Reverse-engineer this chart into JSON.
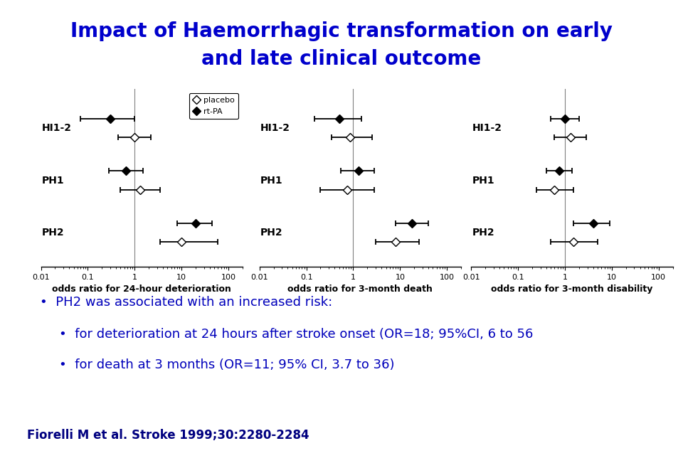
{
  "title_line1": "Impact of Haemorrhagic transformation on early",
  "title_line2": "and late clinical outcome",
  "title_color": "#0000CC",
  "title_fontsize": 20,
  "background_color": "#FFFFFF",
  "panels": [
    {
      "xlabel": "odds ratio for 24-hour deterioration",
      "rows": [
        "HI1-2",
        "PH1",
        "PH2"
      ],
      "rtpa": {
        "or": [
          0.3,
          0.65,
          20
        ],
        "ci_lo": [
          0.07,
          0.28,
          8
        ],
        "ci_hi": [
          1.0,
          1.5,
          45
        ]
      },
      "placebo": {
        "or": [
          1.0,
          1.3,
          10
        ],
        "ci_lo": [
          0.45,
          0.5,
          3.5
        ],
        "ci_hi": [
          2.2,
          3.5,
          60
        ]
      }
    },
    {
      "xlabel": "odds ratio for 3-month death",
      "rows": [
        "HI1-2",
        "PH1",
        "PH2"
      ],
      "rtpa": {
        "or": [
          0.5,
          1.3,
          18
        ],
        "ci_lo": [
          0.15,
          0.55,
          8
        ],
        "ci_hi": [
          1.5,
          2.8,
          40
        ]
      },
      "placebo": {
        "or": [
          0.85,
          0.75,
          8
        ],
        "ci_lo": [
          0.35,
          0.2,
          3
        ],
        "ci_hi": [
          2.5,
          2.8,
          25
        ]
      }
    },
    {
      "xlabel": "odds ratio for 3-month disability",
      "rows": [
        "HI1-2",
        "PH1",
        "PH2"
      ],
      "rtpa": {
        "or": [
          1.0,
          0.75,
          4.0
        ],
        "ci_lo": [
          0.5,
          0.4,
          1.5
        ],
        "ci_hi": [
          2.0,
          1.4,
          9.0
        ]
      },
      "placebo": {
        "or": [
          1.3,
          0.6,
          1.5
        ],
        "ci_lo": [
          0.6,
          0.25,
          0.5
        ],
        "ci_hi": [
          2.8,
          1.5,
          5.0
        ]
      }
    }
  ],
  "text_box": {
    "line1": "PH2 was associated with an increased risk:",
    "line2": "for deterioration at 24 hours after stroke onset (OR=18; 95%CI, 6 to 56",
    "line3": "for death at 3 months (OR=11; 95% CI, 3.7 to 36)",
    "bg_color": "#CCFFCC",
    "border_color": "#99CC99",
    "text_color": "#0000BB",
    "fontsize": 13
  },
  "footnote": "Fiorelli M et al. Stroke 1999;30:2280-2284",
  "footnote_color": "#000080",
  "footnote_fontsize": 12
}
